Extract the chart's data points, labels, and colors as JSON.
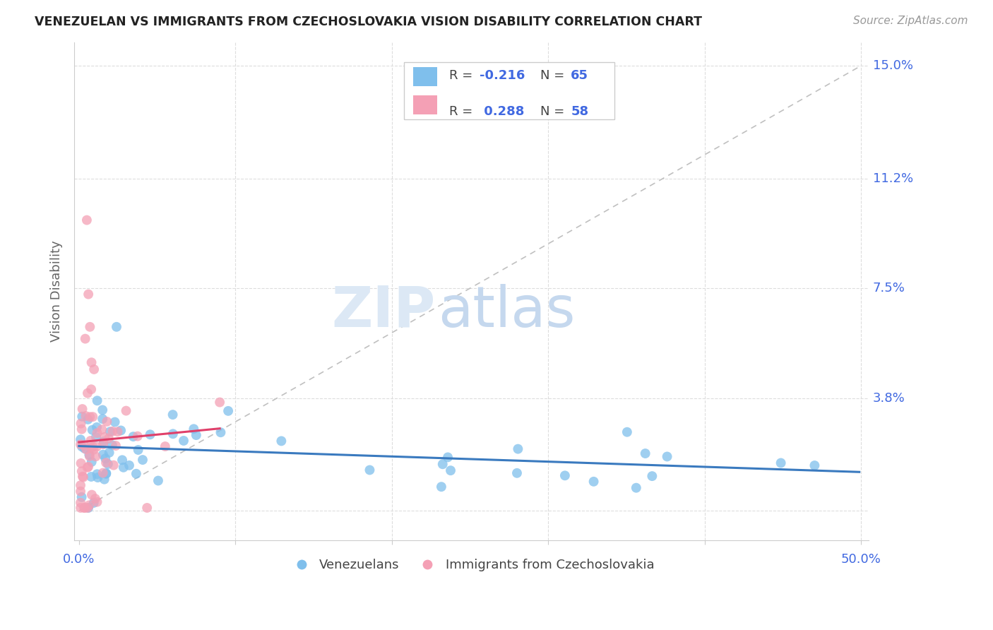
{
  "title": "VENEZUELAN VS IMMIGRANTS FROM CZECHOSLOVAKIA VISION DISABILITY CORRELATION CHART",
  "source": "Source: ZipAtlas.com",
  "ylabel": "Vision Disability",
  "color_blue": "#7fbfec",
  "color_pink": "#f4a0b5",
  "color_trend_blue": "#3a7abf",
  "color_trend_pink": "#e0406a",
  "color_axis_labels": "#4169E1",
  "color_grid": "#dddddd",
  "watermark_zip_color": "#dce8f5",
  "watermark_atlas_color": "#c5d8ee",
  "ytick_vals": [
    0.0,
    0.038,
    0.075,
    0.112,
    0.15
  ],
  "ytick_labels": [
    "",
    "3.8%",
    "7.5%",
    "11.2%",
    "15.0%"
  ],
  "xtick_vals": [
    0.0,
    0.1,
    0.2,
    0.3,
    0.4,
    0.5
  ],
  "xlim": [
    -0.003,
    0.505
  ],
  "ylim": [
    -0.01,
    0.158
  ]
}
